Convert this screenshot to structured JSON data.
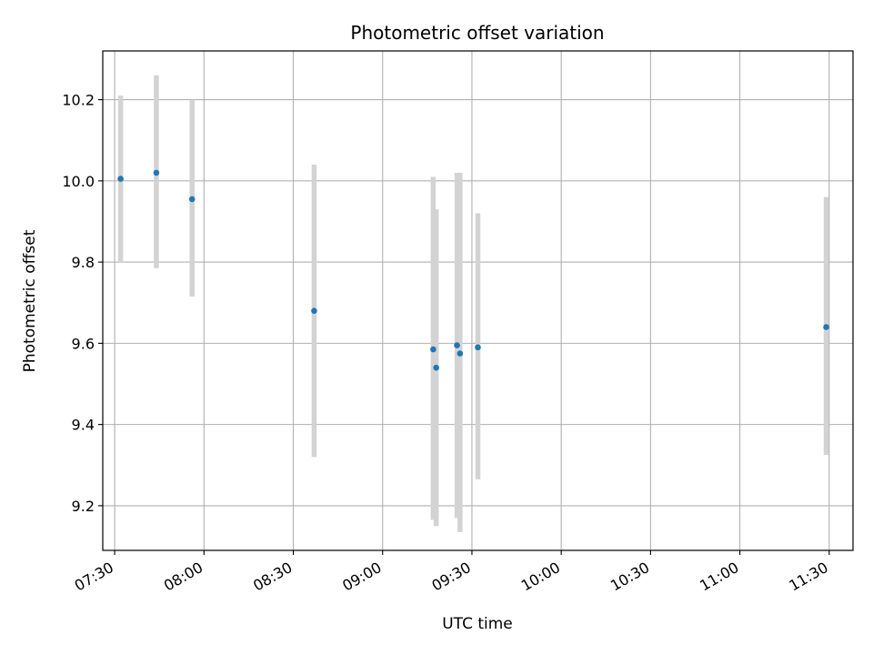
{
  "chart_data": {
    "type": "scatter",
    "title": "Photometric offset variation",
    "xlabel": "UTC time",
    "ylabel": "Photometric offset",
    "x_ticks": [
      "07:30",
      "08:00",
      "08:30",
      "09:00",
      "09:30",
      "10:00",
      "10:30",
      "11:00",
      "11:30"
    ],
    "y_ticks": [
      "9.2",
      "9.4",
      "9.6",
      "9.8",
      "10.0",
      "10.2"
    ],
    "xlim": [
      "07:26",
      "11:38"
    ],
    "ylim": [
      9.09,
      10.32
    ],
    "grid": true,
    "point_color": "#1f77b4",
    "errorbar_color": "#d3d3d3",
    "points": [
      {
        "x": "07:32",
        "y": 10.005,
        "ylow": 9.8,
        "yhigh": 10.21
      },
      {
        "x": "07:44",
        "y": 10.02,
        "ylow": 9.785,
        "yhigh": 10.26
      },
      {
        "x": "07:56",
        "y": 9.955,
        "ylow": 9.715,
        "yhigh": 10.2
      },
      {
        "x": "08:37",
        "y": 9.68,
        "ylow": 9.32,
        "yhigh": 10.04
      },
      {
        "x": "09:17",
        "y": 9.585,
        "ylow": 9.165,
        "yhigh": 10.01
      },
      {
        "x": "09:18",
        "y": 9.54,
        "ylow": 9.15,
        "yhigh": 9.93
      },
      {
        "x": "09:25",
        "y": 9.595,
        "ylow": 9.17,
        "yhigh": 10.02
      },
      {
        "x": "09:26",
        "y": 9.575,
        "ylow": 9.135,
        "yhigh": 10.02
      },
      {
        "x": "09:32",
        "y": 9.59,
        "ylow": 9.265,
        "yhigh": 9.92
      },
      {
        "x": "11:29",
        "y": 9.64,
        "ylow": 9.325,
        "yhigh": 9.96
      }
    ]
  }
}
